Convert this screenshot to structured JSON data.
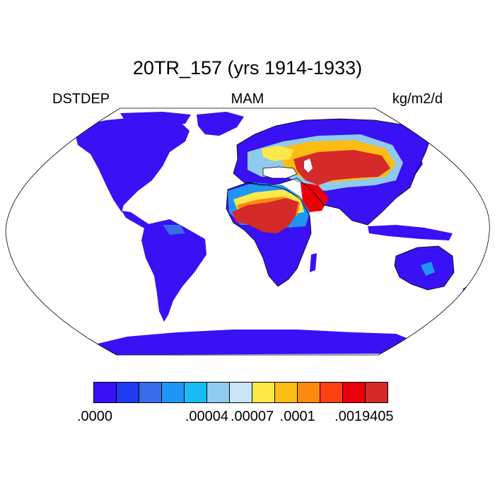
{
  "title": "20TR_157 (yrs 1914-1933)",
  "left_label": "DSTDEP",
  "center_label": "MAM",
  "right_label": "kg/m2/d",
  "map": {
    "projection": "Robinson",
    "field": "dust deposition",
    "ocean_color": "#ffffff",
    "land_base_color": "#3a10f5",
    "coastline_color": "#000000"
  },
  "colorbar": {
    "colors": [
      "#3a10f5",
      "#1f3af0",
      "#3a6be8",
      "#1f96f5",
      "#18bcf5",
      "#8ecbef",
      "#c8e6f7",
      "#fde84a",
      "#fdbb14",
      "#fd8a10",
      "#fd4010",
      "#e8000a",
      "#d52a2a"
    ],
    "tick_labels": [
      ".0000",
      ".00004",
      ".00007",
      ".0001",
      ".0019405"
    ],
    "tick_edges": [
      0,
      5,
      7,
      9,
      11
    ]
  }
}
